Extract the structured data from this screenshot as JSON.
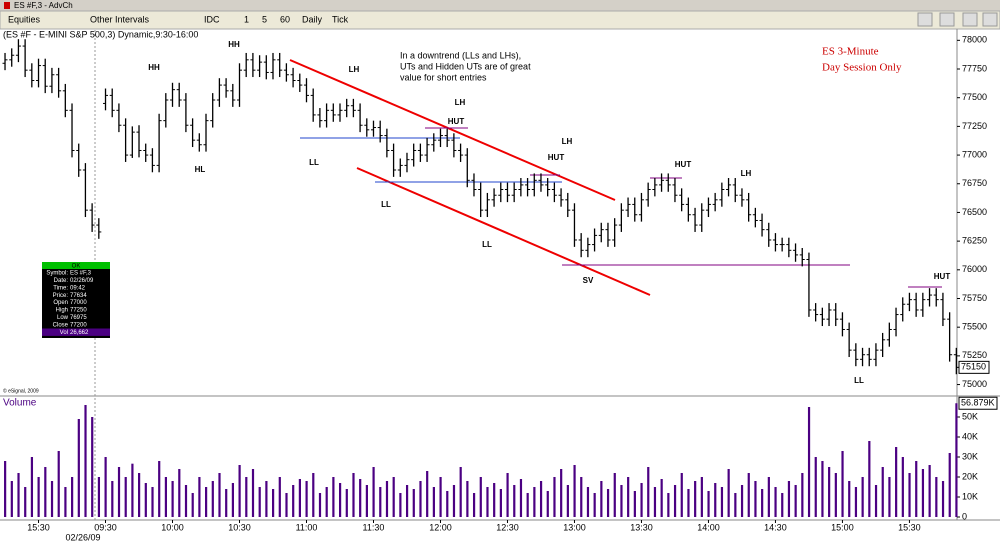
{
  "window": {
    "title": "ES #F,3 - AdvCh",
    "toolbar": [
      "Equities",
      "Other Intervals",
      "IDC",
      "1",
      "5",
      "60",
      "Daily",
      "Tick"
    ]
  },
  "data_window": {
    "title": "OK",
    "rows": [
      [
        "Symbol:",
        "ES #F,3"
      ],
      [
        "Date:",
        "02/26/09"
      ],
      [
        "Time:",
        "09:42"
      ],
      [
        "Price:",
        "77634"
      ],
      [
        "Open",
        "77000"
      ],
      [
        "High",
        "77250"
      ],
      [
        "Low",
        "76975"
      ],
      [
        "Close",
        "77200"
      ],
      [
        "Vol",
        "26,662"
      ]
    ]
  },
  "chart_data": [
    {
      "type": "ohlc",
      "title": "(ES #F - E-MINI S&P 500,3) Dynamic,9:30-16:00",
      "color": "#000000",
      "open": [
        77800,
        77830,
        77870,
        77950,
        77740,
        77650,
        77780,
        77600,
        77700,
        77560,
        77390,
        77040,
        76870,
        76520,
        76390,
        77450,
        77520,
        77390,
        77260,
        77000,
        77200,
        77040,
        77000,
        76910,
        77300,
        77480,
        77570,
        77480,
        77260,
        77130,
        77090,
        77300,
        77480,
        77610,
        77560,
        77480,
        77740,
        77830,
        77740,
        77810,
        77720,
        77830,
        77740,
        77700,
        77650,
        77610,
        77520,
        77350,
        77300,
        77390,
        77350,
        77390,
        77430,
        77390,
        77260,
        77220,
        77240,
        77170,
        77040,
        76870,
        76910,
        76960,
        77040,
        77000,
        77090,
        77130,
        77170,
        77130,
        77040,
        77000,
        76780,
        76700,
        76520,
        76610,
        76650,
        76700,
        76650,
        76700,
        76740,
        76700,
        76780,
        76740,
        76700,
        76650,
        76610,
        76520,
        76260,
        76170,
        76220,
        76300,
        76350,
        76260,
        76390,
        76520,
        76570,
        76480,
        76610,
        76700,
        76740,
        76780,
        76740,
        76650,
        76570,
        76480,
        76390,
        76520,
        76570,
        76610,
        76700,
        76740,
        76650,
        76610,
        76480,
        76430,
        76350,
        76260,
        76220,
        76220,
        76170,
        76130,
        76090,
        75650,
        75610,
        75570,
        75650,
        75570,
        75480,
        75300,
        75220,
        75260,
        75220,
        75300,
        75390,
        75480,
        75610,
        75700,
        75740,
        75650,
        75740,
        75780,
        75740,
        75570,
        75260
      ],
      "high": [
        77890,
        77930,
        78010,
        78010,
        77800,
        77840,
        77840,
        77760,
        77760,
        77620,
        77450,
        77100,
        76930,
        76580,
        76450,
        77580,
        77580,
        77450,
        77320,
        77250,
        77260,
        77100,
        77060,
        77360,
        77540,
        77630,
        77630,
        77540,
        77320,
        77190,
        77360,
        77540,
        77670,
        77670,
        77620,
        77800,
        77890,
        77890,
        77870,
        77870,
        77890,
        77890,
        77800,
        77760,
        77710,
        77670,
        77580,
        77410,
        77450,
        77450,
        77450,
        77490,
        77490,
        77450,
        77320,
        77300,
        77300,
        77230,
        77100,
        76970,
        77020,
        77100,
        77100,
        77150,
        77190,
        77230,
        77230,
        77190,
        77100,
        77060,
        76840,
        76760,
        76670,
        76710,
        76760,
        76760,
        76760,
        76800,
        76800,
        76840,
        76840,
        76800,
        76760,
        76710,
        76670,
        76580,
        76320,
        76280,
        76360,
        76410,
        76410,
        76450,
        76580,
        76630,
        76630,
        76670,
        76760,
        76800,
        76840,
        76840,
        76800,
        76710,
        76630,
        76540,
        76580,
        76630,
        76670,
        76760,
        76800,
        76800,
        76710,
        76670,
        76540,
        76490,
        76410,
        76320,
        76280,
        76280,
        76230,
        76190,
        76150,
        75710,
        75670,
        75710,
        75710,
        75630,
        75540,
        75360,
        75320,
        75320,
        75360,
        75450,
        75540,
        75670,
        75760,
        75800,
        75800,
        75800,
        75840,
        75840,
        75800,
        75630,
        75320
      ],
      "low": [
        77740,
        77770,
        77810,
        77680,
        77590,
        77590,
        77540,
        77540,
        77500,
        77330,
        76980,
        76810,
        76460,
        76330,
        76270,
        77390,
        77330,
        77200,
        76940,
        76975,
        76980,
        76940,
        76850,
        76850,
        77240,
        77420,
        77420,
        77200,
        77070,
        77030,
        77030,
        77240,
        77420,
        77500,
        77420,
        77420,
        77680,
        77680,
        77680,
        77660,
        77660,
        77680,
        77640,
        77590,
        77550,
        77460,
        77290,
        77240,
        77240,
        77290,
        77290,
        77330,
        77330,
        77200,
        77160,
        77160,
        77110,
        76980,
        76810,
        76810,
        76850,
        76900,
        76940,
        76940,
        77030,
        77070,
        77070,
        76980,
        76940,
        76720,
        76640,
        76460,
        76460,
        76550,
        76590,
        76590,
        76590,
        76640,
        76640,
        76640,
        76680,
        76640,
        76590,
        76550,
        76460,
        76200,
        76110,
        76110,
        76160,
        76240,
        76200,
        76200,
        76330,
        76460,
        76420,
        76420,
        76550,
        76640,
        76680,
        76680,
        76590,
        76510,
        76420,
        76330,
        76330,
        76460,
        76510,
        76550,
        76640,
        76590,
        76550,
        76420,
        76370,
        76290,
        76200,
        76160,
        76160,
        76110,
        76070,
        76030,
        75590,
        75550,
        75510,
        75510,
        75510,
        75420,
        75240,
        75160,
        75160,
        75160,
        75160,
        75240,
        75330,
        75420,
        75550,
        75640,
        75590,
        75590,
        75680,
        75680,
        75510,
        75200,
        75090
      ],
      "close": [
        77830,
        77870,
        77950,
        77740,
        77650,
        77780,
        77600,
        77700,
        77560,
        77390,
        77040,
        76870,
        76520,
        76390,
        76330,
        77520,
        77390,
        77260,
        77000,
        77200,
        77040,
        77000,
        76910,
        77300,
        77480,
        77570,
        77480,
        77260,
        77130,
        77090,
        77300,
        77480,
        77610,
        77560,
        77480,
        77740,
        77830,
        77740,
        77810,
        77720,
        77830,
        77740,
        77700,
        77650,
        77610,
        77520,
        77350,
        77300,
        77390,
        77350,
        77390,
        77430,
        77390,
        77260,
        77220,
        77240,
        77170,
        77040,
        76870,
        76910,
        76960,
        77040,
        77000,
        77090,
        77130,
        77170,
        77130,
        77040,
        77000,
        76780,
        76700,
        76520,
        76610,
        76650,
        76700,
        76650,
        76700,
        76740,
        76700,
        76780,
        76740,
        76700,
        76650,
        76610,
        76520,
        76260,
        76170,
        76220,
        76300,
        76350,
        76260,
        76390,
        76520,
        76570,
        76480,
        76610,
        76700,
        76740,
        76780,
        76740,
        76650,
        76570,
        76480,
        76390,
        76520,
        76570,
        76610,
        76700,
        76740,
        76650,
        76610,
        76480,
        76430,
        76350,
        76260,
        76220,
        76220,
        76170,
        76130,
        76090,
        75650,
        75610,
        75570,
        75650,
        75570,
        75480,
        75300,
        75220,
        75260,
        75220,
        75300,
        75390,
        75480,
        75610,
        75700,
        75740,
        75650,
        75740,
        75780,
        75740,
        75570,
        75260,
        75150
      ],
      "xlim": [
        -0.75,
        142.1
      ],
      "ylim": [
        74970,
        78090
      ],
      "yticks": [
        78000,
        77750,
        77500,
        77250,
        77000,
        76750,
        76500,
        76250,
        76000,
        75750,
        75500,
        75250,
        75000
      ],
      "last_price": 75150,
      "annotations": [
        "HH",
        "HH",
        "HL",
        "LH",
        "LL",
        "LL",
        "LH",
        "HUT",
        "LH",
        "HUT",
        "LL",
        "SV",
        "HUT",
        "LH",
        "HUT",
        "LL"
      ],
      "note": [
        "In a downtrend (LLs and LHs),",
        "UTs and Hidden UTs are of great",
        "value for short entries"
      ],
      "session_label": [
        "ES 3-Minute",
        "Day Session Only"
      ],
      "copyright": "© eSignal, 2009"
    },
    {
      "type": "bar",
      "title": "Volume",
      "color": "#4b0082",
      "values": [
        28000,
        18000,
        22000,
        15000,
        30000,
        20000,
        25000,
        18000,
        33000,
        15000,
        20000,
        49000,
        56000,
        50000,
        20000,
        30000,
        18000,
        25000,
        20000,
        26662,
        22000,
        17000,
        15000,
        28000,
        20000,
        18000,
        24000,
        16000,
        12000,
        20000,
        15000,
        18000,
        22000,
        14000,
        17000,
        26000,
        20000,
        24000,
        15000,
        18000,
        14000,
        20000,
        12000,
        16000,
        19000,
        18000,
        22000,
        12000,
        15000,
        20000,
        17000,
        14000,
        22000,
        19000,
        16000,
        25000,
        15000,
        18000,
        20000,
        12000,
        16000,
        14000,
        18000,
        23000,
        15000,
        20000,
        13000,
        16000,
        25000,
        18000,
        12000,
        20000,
        15000,
        17000,
        14000,
        22000,
        16000,
        19000,
        12000,
        15000,
        18000,
        13000,
        20000,
        24000,
        16000,
        26000,
        20000,
        15000,
        12000,
        18000,
        14000,
        22000,
        16000,
        20000,
        13000,
        17000,
        25000,
        15000,
        19000,
        12000,
        16000,
        22000,
        14000,
        18000,
        20000,
        13000,
        17000,
        15000,
        24000,
        12000,
        16000,
        22000,
        18000,
        14000,
        20000,
        15000,
        12000,
        18000,
        16000,
        22000,
        55000,
        30000,
        28000,
        25000,
        22000,
        33000,
        18000,
        15000,
        20000,
        38000,
        16000,
        25000,
        20000,
        35000,
        30000,
        22000,
        28000,
        24000,
        26000,
        20000,
        18000,
        32000,
        56879
      ],
      "last_value": {
        "value": 56879,
        "label": "56.879K"
      },
      "xlim": [
        -0.75,
        142.1
      ],
      "ylim": [
        0,
        58500
      ],
      "yticks": [
        0,
        {
          "value": 10000,
          "label": "10K"
        },
        {
          "value": 20000,
          "label": "20K"
        },
        {
          "value": 30000,
          "label": "30K"
        },
        {
          "value": 40000,
          "label": "40K"
        },
        {
          "value": 50000,
          "label": "50K"
        }
      ],
      "xticks": [
        {
          "value": 5,
          "label": "15:30"
        },
        {
          "value": 15,
          "label": "09:30"
        },
        {
          "value": 25,
          "label": "10:00"
        },
        {
          "value": 35,
          "label": "10:30"
        },
        {
          "value": 45,
          "label": "11:00"
        },
        {
          "value": 55,
          "label": "11:30"
        },
        {
          "value": 65,
          "label": "12:00"
        },
        {
          "value": 75,
          "label": "12:30"
        },
        {
          "value": 85,
          "label": "13:00"
        },
        {
          "value": 95,
          "label": "13:30"
        },
        {
          "value": 105,
          "label": "14:00"
        },
        {
          "value": 115,
          "label": "14:30"
        },
        {
          "value": 125,
          "label": "15:00"
        },
        {
          "value": 135,
          "label": "15:30"
        }
      ],
      "date_label": "02/26/09"
    }
  ]
}
